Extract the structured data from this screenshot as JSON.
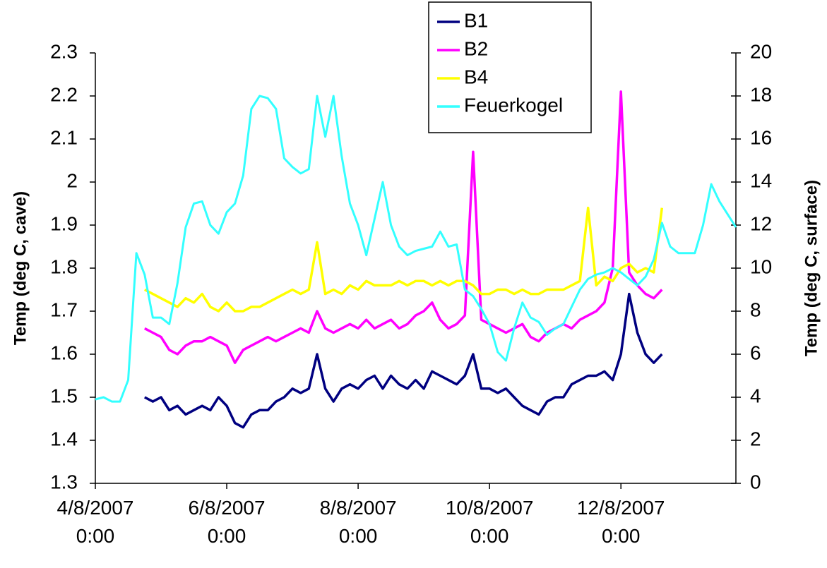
{
  "chart_data": {
    "type": "line",
    "x": [
      "2007-08-04 00:00",
      "2007-08-04 03:00",
      "2007-08-04 06:00",
      "2007-08-04 09:00",
      "2007-08-04 12:00",
      "2007-08-04 15:00",
      "2007-08-04 18:00",
      "2007-08-04 21:00",
      "2007-08-05 00:00",
      "2007-08-05 03:00",
      "2007-08-05 06:00",
      "2007-08-05 09:00",
      "2007-08-05 12:00",
      "2007-08-05 15:00",
      "2007-08-05 18:00",
      "2007-08-05 21:00",
      "2007-08-06 00:00",
      "2007-08-06 03:00",
      "2007-08-06 06:00",
      "2007-08-06 09:00",
      "2007-08-06 12:00",
      "2007-08-06 15:00",
      "2007-08-06 18:00",
      "2007-08-06 21:00",
      "2007-08-07 00:00",
      "2007-08-07 03:00",
      "2007-08-07 06:00",
      "2007-08-07 09:00",
      "2007-08-07 12:00",
      "2007-08-07 15:00",
      "2007-08-07 18:00",
      "2007-08-07 21:00",
      "2007-08-08 00:00",
      "2007-08-08 03:00",
      "2007-08-08 06:00",
      "2007-08-08 09:00",
      "2007-08-08 12:00",
      "2007-08-08 15:00",
      "2007-08-08 18:00",
      "2007-08-08 21:00",
      "2007-08-09 00:00",
      "2007-08-09 03:00",
      "2007-08-09 06:00",
      "2007-08-09 09:00",
      "2007-08-09 12:00",
      "2007-08-09 15:00",
      "2007-08-09 18:00",
      "2007-08-09 21:00",
      "2007-08-10 00:00",
      "2007-08-10 03:00",
      "2007-08-10 06:00",
      "2007-08-10 09:00",
      "2007-08-10 12:00",
      "2007-08-10 15:00",
      "2007-08-10 18:00",
      "2007-08-10 21:00",
      "2007-08-11 00:00",
      "2007-08-11 03:00",
      "2007-08-11 06:00",
      "2007-08-11 09:00",
      "2007-08-11 12:00",
      "2007-08-11 15:00",
      "2007-08-11 18:00",
      "2007-08-11 21:00",
      "2007-08-12 00:00",
      "2007-08-12 03:00",
      "2007-08-12 06:00",
      "2007-08-12 09:00",
      "2007-08-12 12:00",
      "2007-08-12 15:00",
      "2007-08-12 18:00",
      "2007-08-12 21:00",
      "2007-08-13 00:00",
      "2007-08-13 03:00",
      "2007-08-13 06:00",
      "2007-08-13 09:00",
      "2007-08-13 12:00",
      "2007-08-13 15:00",
      "2007-08-13 18:00"
    ],
    "xlim": [
      "2007-08-04 00:00",
      "2007-08-13 18:00"
    ],
    "xticks": [
      {
        "value": "2007-08-04 00:00",
        "label": "4/8/2007 0:00"
      },
      {
        "value": "2007-08-06 00:00",
        "label": "6/8/2007 0:00"
      },
      {
        "value": "2007-08-08 00:00",
        "label": "8/8/2007 0:00"
      },
      {
        "value": "2007-08-10 00:00",
        "label": "10/8/2007 0:00"
      },
      {
        "value": "2007-08-12 00:00",
        "label": "12/8/2007 0:00"
      }
    ],
    "ylabel": "Temp (deg C, cave)",
    "y2label": "Temp (deg C, surface)",
    "ylim": [
      1.3,
      2.3
    ],
    "yticks": [
      1.3,
      1.4,
      1.5,
      1.6,
      1.7,
      1.8,
      1.9,
      2,
      2.1,
      2.2,
      2.3
    ],
    "y2lim": [
      0,
      20
    ],
    "y2ticks": [
      0,
      2,
      4,
      6,
      8,
      10,
      12,
      14,
      16,
      18,
      20
    ],
    "legend": "top",
    "series": [
      {
        "name": "B1",
        "color": "#000080",
        "values": [
          null,
          null,
          null,
          null,
          null,
          null,
          1.5,
          1.49,
          1.5,
          1.47,
          1.48,
          1.46,
          1.47,
          1.48,
          1.47,
          1.5,
          1.48,
          1.44,
          1.43,
          1.46,
          1.47,
          1.47,
          1.49,
          1.5,
          1.52,
          1.51,
          1.52,
          1.6,
          1.52,
          1.49,
          1.52,
          1.53,
          1.52,
          1.54,
          1.55,
          1.52,
          1.55,
          1.53,
          1.52,
          1.54,
          1.52,
          1.56,
          1.55,
          1.54,
          1.53,
          1.55,
          1.6,
          1.52,
          1.52,
          1.51,
          1.52,
          1.5,
          1.48,
          1.47,
          1.46,
          1.49,
          1.5,
          1.5,
          1.53,
          1.54,
          1.55,
          1.55,
          1.56,
          1.54,
          1.6,
          1.74,
          1.65,
          1.6,
          1.58,
          1.6,
          null,
          null,
          null,
          null,
          null,
          null,
          null,
          null,
          null
        ]
      },
      {
        "name": "B2",
        "color": "#ff00ff",
        "values": [
          null,
          null,
          null,
          null,
          null,
          null,
          1.66,
          1.65,
          1.64,
          1.61,
          1.6,
          1.62,
          1.63,
          1.63,
          1.64,
          1.63,
          1.62,
          1.58,
          1.61,
          1.62,
          1.63,
          1.64,
          1.63,
          1.64,
          1.65,
          1.66,
          1.65,
          1.7,
          1.66,
          1.65,
          1.66,
          1.67,
          1.66,
          1.68,
          1.66,
          1.67,
          1.68,
          1.66,
          1.67,
          1.69,
          1.7,
          1.72,
          1.68,
          1.66,
          1.67,
          1.69,
          2.07,
          1.68,
          1.67,
          1.66,
          1.65,
          1.66,
          1.67,
          1.64,
          1.63,
          1.65,
          1.66,
          1.67,
          1.66,
          1.68,
          1.69,
          1.7,
          1.72,
          1.8,
          2.21,
          1.79,
          1.76,
          1.74,
          1.73,
          1.75,
          null,
          null,
          null,
          null,
          null,
          null,
          null,
          null,
          null
        ]
      },
      {
        "name": "B4",
        "color": "#ffff00",
        "values": [
          null,
          null,
          null,
          null,
          null,
          null,
          1.75,
          1.74,
          1.73,
          1.72,
          1.71,
          1.73,
          1.72,
          1.74,
          1.71,
          1.7,
          1.72,
          1.7,
          1.7,
          1.71,
          1.71,
          1.72,
          1.73,
          1.74,
          1.75,
          1.74,
          1.75,
          1.86,
          1.74,
          1.75,
          1.74,
          1.76,
          1.75,
          1.77,
          1.76,
          1.76,
          1.76,
          1.77,
          1.76,
          1.77,
          1.77,
          1.76,
          1.77,
          1.76,
          1.77,
          1.77,
          1.76,
          1.74,
          1.74,
          1.75,
          1.75,
          1.74,
          1.75,
          1.74,
          1.74,
          1.75,
          1.75,
          1.75,
          1.76,
          1.77,
          1.94,
          1.76,
          1.78,
          1.77,
          1.8,
          1.81,
          1.79,
          1.8,
          1.79,
          1.94,
          null,
          null,
          null,
          null,
          null,
          null,
          null,
          null,
          null
        ]
      },
      {
        "name": "Feuerkogel",
        "color": "#33ffff",
        "axis": "y2",
        "values": [
          3.9,
          4.0,
          3.8,
          3.8,
          4.8,
          10.7,
          9.7,
          7.7,
          7.7,
          7.4,
          9.3,
          11.9,
          13.0,
          13.1,
          12.0,
          11.6,
          12.6,
          13.0,
          14.3,
          17.4,
          18.0,
          17.9,
          17.4,
          15.1,
          14.7,
          14.4,
          14.6,
          18.0,
          16.1,
          18.0,
          15.2,
          13.0,
          12.0,
          10.6,
          12.3,
          14.0,
          12.0,
          11.0,
          10.6,
          10.8,
          10.9,
          11.0,
          11.7,
          11.0,
          11.1,
          9.0,
          8.7,
          8.1,
          7.4,
          6.1,
          5.7,
          7.2,
          8.4,
          7.7,
          7.5,
          6.9,
          7.2,
          7.4,
          8.2,
          9.0,
          9.5,
          9.7,
          9.8,
          10.0,
          9.8,
          9.5,
          9.2,
          9.6,
          10.4,
          12.1,
          11.0,
          10.7,
          10.7,
          10.7,
          12.0,
          13.9,
          13.1,
          12.5,
          11.9
        ]
      }
    ]
  }
}
